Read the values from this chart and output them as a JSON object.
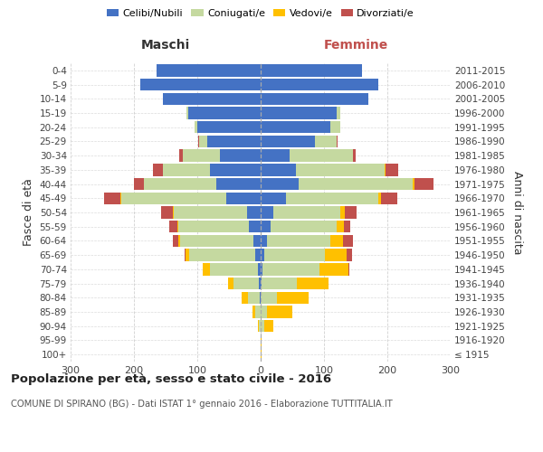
{
  "age_groups": [
    "100+",
    "95-99",
    "90-94",
    "85-89",
    "80-84",
    "75-79",
    "70-74",
    "65-69",
    "60-64",
    "55-59",
    "50-54",
    "45-49",
    "40-44",
    "35-39",
    "30-34",
    "25-29",
    "20-24",
    "15-19",
    "10-14",
    "5-9",
    "0-4"
  ],
  "birth_years": [
    "≤ 1915",
    "1916-1920",
    "1921-1925",
    "1926-1930",
    "1931-1935",
    "1936-1940",
    "1941-1945",
    "1946-1950",
    "1951-1955",
    "1956-1960",
    "1961-1965",
    "1966-1970",
    "1971-1975",
    "1976-1980",
    "1981-1985",
    "1986-1990",
    "1991-1995",
    "1996-2000",
    "2001-2005",
    "2006-2010",
    "2011-2015"
  ],
  "maschi": {
    "celibe": [
      0,
      0,
      0,
      0,
      2,
      3,
      5,
      8,
      12,
      18,
      22,
      55,
      70,
      80,
      65,
      85,
      100,
      115,
      155,
      190,
      165
    ],
    "coniugato": [
      0,
      0,
      3,
      8,
      18,
      40,
      75,
      105,
      115,
      112,
      115,
      165,
      115,
      75,
      58,
      12,
      5,
      2,
      0,
      0,
      0
    ],
    "vedovo": [
      0,
      0,
      2,
      5,
      10,
      8,
      12,
      5,
      3,
      2,
      2,
      2,
      0,
      0,
      0,
      0,
      0,
      0,
      0,
      0,
      0
    ],
    "divorziato": [
      0,
      0,
      0,
      0,
      0,
      0,
      0,
      2,
      8,
      12,
      18,
      25,
      15,
      15,
      5,
      2,
      0,
      0,
      0,
      0,
      0
    ]
  },
  "femmine": {
    "nubile": [
      0,
      0,
      0,
      0,
      0,
      2,
      3,
      6,
      10,
      15,
      20,
      40,
      60,
      55,
      45,
      85,
      110,
      120,
      170,
      185,
      160
    ],
    "coniugata": [
      0,
      0,
      5,
      10,
      25,
      55,
      90,
      95,
      100,
      105,
      105,
      145,
      180,
      140,
      100,
      35,
      15,
      5,
      0,
      0,
      0
    ],
    "vedova": [
      2,
      2,
      15,
      40,
      50,
      50,
      45,
      35,
      20,
      12,
      8,
      5,
      3,
      2,
      0,
      0,
      0,
      0,
      0,
      0,
      0
    ],
    "divorziata": [
      0,
      0,
      0,
      0,
      0,
      0,
      2,
      8,
      15,
      10,
      18,
      25,
      30,
      20,
      5,
      2,
      0,
      0,
      0,
      0,
      0
    ]
  },
  "colors": {
    "celibe": "#4472c4",
    "coniugato": "#c5d9a0",
    "vedovo": "#ffc000",
    "divorziato": "#c0504d"
  },
  "xlim": 300,
  "title": "Popolazione per età, sesso e stato civile - 2016",
  "subtitle": "COMUNE DI SPIRANO (BG) - Dati ISTAT 1° gennaio 2016 - Elaborazione TUTTITALIA.IT",
  "ylabel_left": "Fasce di età",
  "ylabel_right": "Anni di nascita",
  "xlabel_left": "Maschi",
  "xlabel_right": "Femmine",
  "bg_color": "#ffffff",
  "grid_color": "#cccccc",
  "legend_labels": [
    "Celibi/Nubili",
    "Coniugati/e",
    "Vedovi/e",
    "Divorziati/e"
  ]
}
